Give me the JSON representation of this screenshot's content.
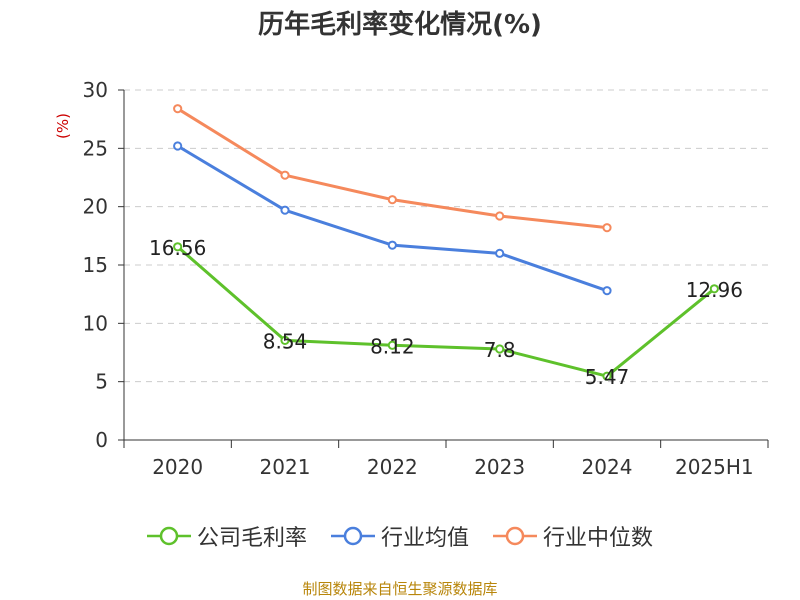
{
  "chart_data": {
    "type": "line",
    "title": "历年毛利率变化情况(%)",
    "ylabel": "(%)",
    "xlabel": "",
    "categories": [
      "2020",
      "2021",
      "2022",
      "2023",
      "2024",
      "2025H1"
    ],
    "ylim": [
      0,
      30
    ],
    "yticks": [
      0,
      5,
      10,
      15,
      20,
      25,
      30
    ],
    "grid": true,
    "legend_position": "bottom",
    "series": [
      {
        "name": "公司毛利率",
        "color": "#5ec12b",
        "values": [
          16.56,
          8.54,
          8.12,
          7.8,
          5.47,
          12.96
        ],
        "labels": [
          "16.56",
          "8.54",
          "8.12",
          "7.8",
          "5.47",
          "12.96"
        ]
      },
      {
        "name": "行业均值",
        "color": "#4a7fdd",
        "values": [
          25.2,
          19.7,
          16.7,
          16.0,
          12.8,
          null
        ]
      },
      {
        "name": "行业中位数",
        "color": "#f5895c",
        "values": [
          28.4,
          22.7,
          20.6,
          19.2,
          18.2,
          null
        ]
      }
    ]
  },
  "footer": {
    "source": "制图数据来自恒生聚源数据库"
  },
  "colors": {
    "ylabel": "#cc0000",
    "grid": "#cccccc",
    "axis": "#333333"
  }
}
